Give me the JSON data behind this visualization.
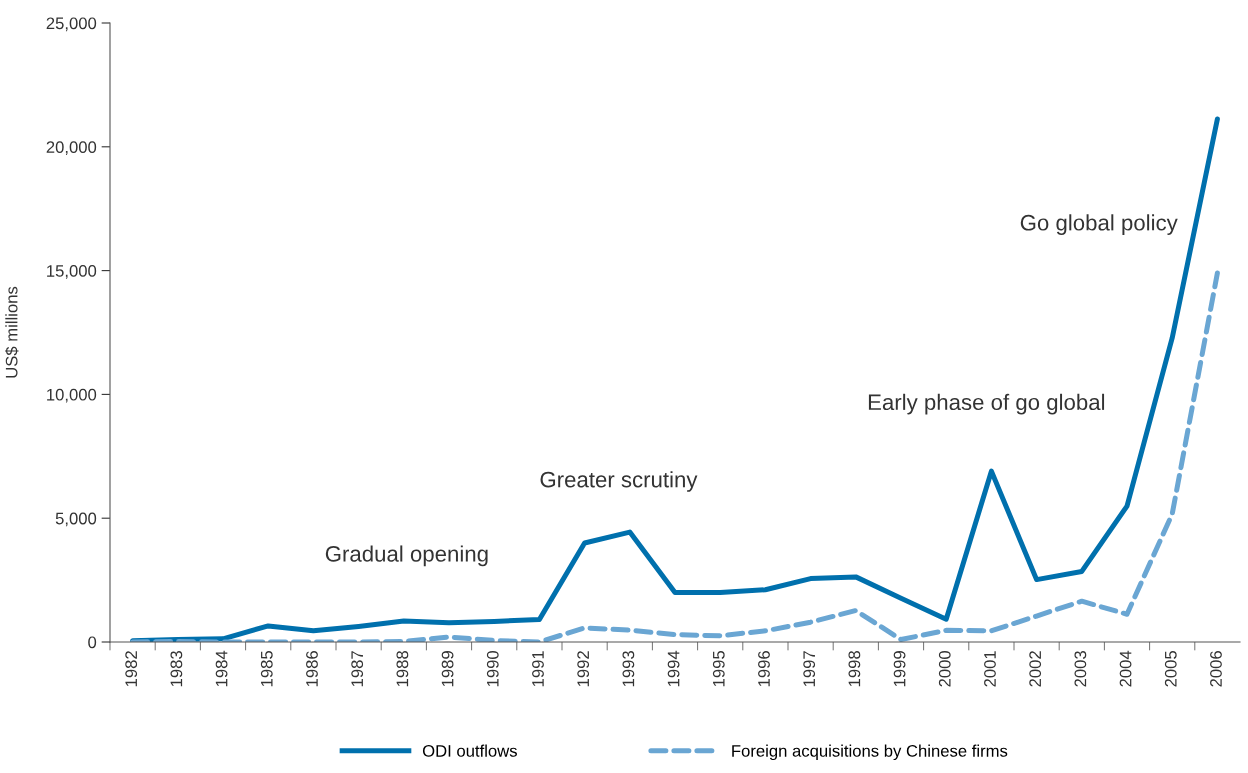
{
  "chart_data": {
    "type": "line",
    "ylabel": "US$ millions",
    "categories": [
      "1982",
      "1983",
      "1984",
      "1985",
      "1986",
      "1987",
      "1988",
      "1989",
      "1990",
      "1991",
      "1992",
      "1993",
      "1994",
      "1995",
      "1996",
      "1997",
      "1998",
      "1999",
      "2000",
      "2001",
      "2002",
      "2003",
      "2004",
      "2005",
      "2006"
    ],
    "series": [
      {
        "name": "ODI outflows",
        "color": "#0070ad",
        "line_style": "solid",
        "values": [
          50,
          100,
          130,
          650,
          450,
          630,
          850,
          780,
          830,
          910,
          4000,
          4440,
          2000,
          2000,
          2110,
          2560,
          2630,
          1770,
          920,
          6900,
          2520,
          2850,
          5490,
          12280,
          21120
        ]
      },
      {
        "name": "Foreign acquisitions by Chinese firms",
        "color": "#6aa6d3",
        "line_style": "dashed",
        "values": [
          0,
          20,
          0,
          0,
          0,
          0,
          20,
          200,
          60,
          0,
          570,
          480,
          300,
          250,
          450,
          800,
          1270,
          100,
          470,
          450,
          1050,
          1650,
          1120,
          5170,
          14900
        ]
      }
    ],
    "ylim": [
      0,
      25000
    ],
    "yticks": [
      {
        "value": 0,
        "label": "0"
      },
      {
        "value": 5000,
        "label": "5,000"
      },
      {
        "value": 10000,
        "label": "10,000"
      },
      {
        "value": 15000,
        "label": "15,000"
      },
      {
        "value": 20000,
        "label": "20,000"
      },
      {
        "value": 25000,
        "label": "25,000"
      }
    ],
    "grid": false,
    "legend": "bottom",
    "marker": "none",
    "annotations": [
      "Gradual opening",
      "Greater scrutiny",
      "Early phase of go global",
      "Go global policy"
    ]
  }
}
